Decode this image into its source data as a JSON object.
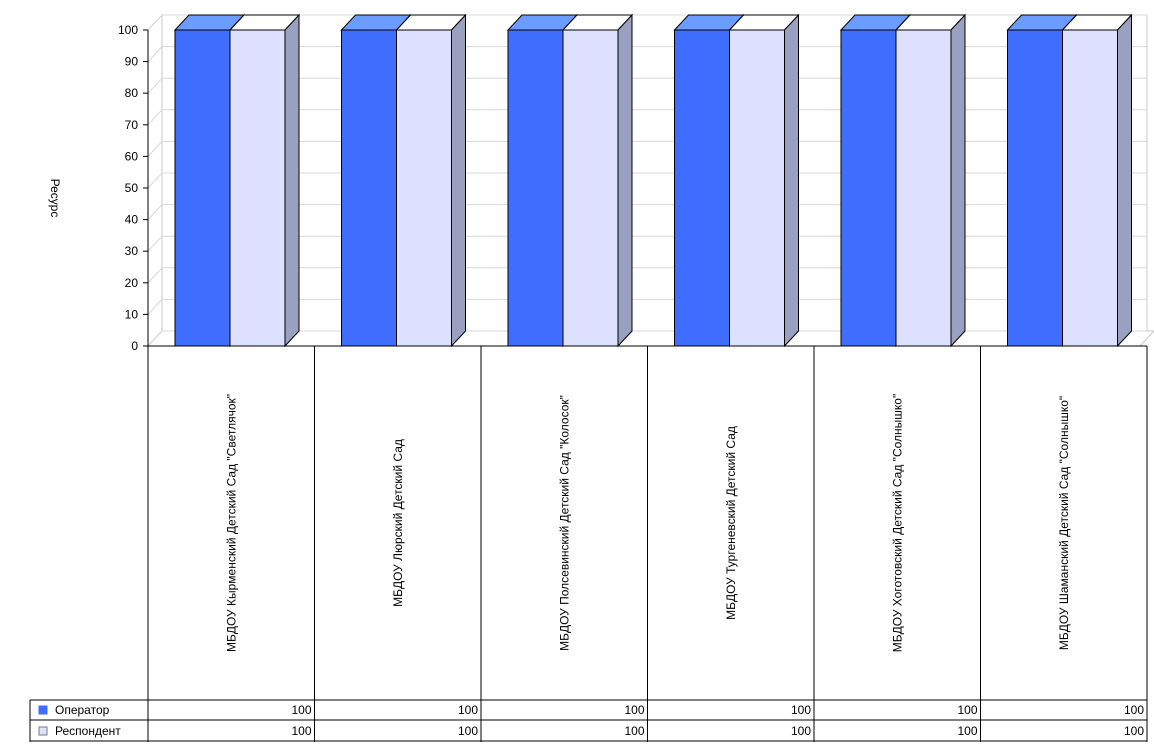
{
  "chart_data": {
    "type": "bar",
    "title": "",
    "xlabel": "",
    "ylabel": "Ресурс",
    "ylim": [
      0,
      100
    ],
    "yticks": [
      0,
      10,
      20,
      30,
      40,
      50,
      60,
      70,
      80,
      90,
      100
    ],
    "grid": true,
    "style": "3d-clustered-bar-with-data-table",
    "categories": [
      "МБДОУ Кырменский Детский Сад \"Светлячок\"",
      "МБДОУ Люрский Детский Сад",
      "МБДОУ Полсевинский Детский Сад \"Колосок\"",
      "МБДОУ Тургеневский Детский Сад",
      "МБДОУ Хоготовский Детский Сад \"Солнышко\"",
      "МБДОУ Шаманский Детский Сад \"Солнышко\""
    ],
    "series": [
      {
        "name": "Оператор",
        "values": [
          100,
          100,
          100,
          100,
          100,
          100
        ],
        "color": "#3f6eff",
        "top_color": "#6b9cff",
        "side_color": "#9aa0c0"
      },
      {
        "name": "Респондент",
        "values": [
          100,
          100,
          100,
          100,
          100,
          100
        ],
        "color": "#dde0ff",
        "top_color": "#ffffff",
        "side_color": "#9aa0c0"
      }
    ]
  }
}
